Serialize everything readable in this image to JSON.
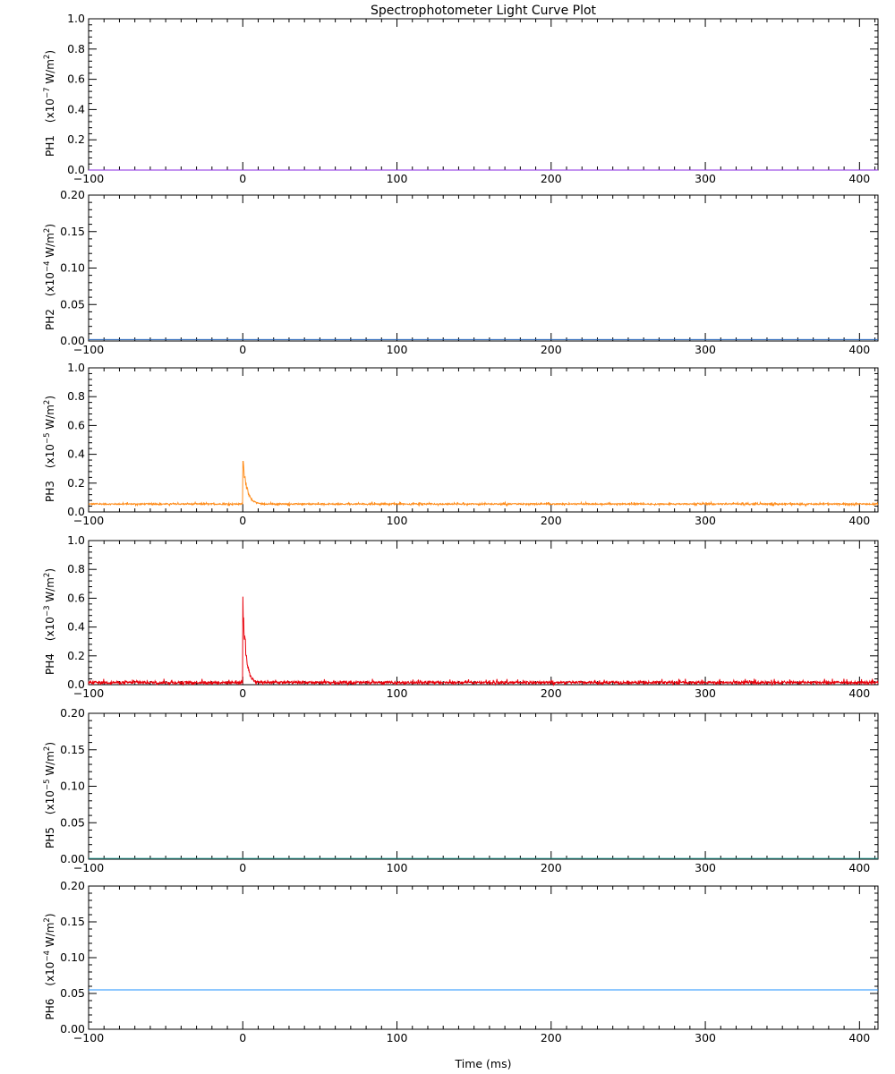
{
  "chart_data": {
    "type": "line",
    "title": "Spectrophotometer Light Curve Plot",
    "xlabel": "Time (ms)",
    "xlim": [
      -100,
      412
    ],
    "xticks": [
      -100,
      0,
      100,
      200,
      300,
      400
    ],
    "xtick_labels": [
      "−100",
      "0",
      "100",
      "200",
      "300",
      "400"
    ],
    "panels": [
      {
        "id": "ph1",
        "ylabel_name": "PH1",
        "ylabel_units": "(x10",
        "ylabel_exp": "−7",
        "ylabel_tail": " W/m",
        "ylabel_sq": "2",
        "ylabel_close": ")",
        "ylim": [
          0,
          1.0
        ],
        "yticks": [
          0.0,
          0.2,
          0.4,
          0.6,
          0.8,
          1.0
        ],
        "ytick_labels": [
          "0.0",
          "0.2",
          "0.4",
          "0.6",
          "0.8",
          "1.0"
        ],
        "color": "#8a2be2",
        "signal": {
          "baseline": 0.0,
          "noise": 0.0,
          "peak": 0.0
        }
      },
      {
        "id": "ph2",
        "ylabel_name": "PH2",
        "ylabel_units": "(x10",
        "ylabel_exp": "−4",
        "ylabel_tail": " W/m",
        "ylabel_sq": "2",
        "ylabel_close": ")",
        "ylim": [
          0,
          0.2
        ],
        "yticks": [
          0.0,
          0.05,
          0.1,
          0.15,
          0.2
        ],
        "ytick_labels": [
          "0.00",
          "0.05",
          "0.10",
          "0.15",
          "0.20"
        ],
        "color": "#1f5fb4",
        "signal": {
          "baseline": 0.002,
          "noise": 0.0,
          "peak": 0.0
        }
      },
      {
        "id": "ph3",
        "ylabel_name": "PH3",
        "ylabel_units": "(x10",
        "ylabel_exp": "−5",
        "ylabel_tail": " W/m",
        "ylabel_sq": "2",
        "ylabel_close": ")",
        "ylim": [
          0,
          1.0
        ],
        "yticks": [
          0.0,
          0.2,
          0.4,
          0.6,
          0.8,
          1.0
        ],
        "ytick_labels": [
          "0.0",
          "0.2",
          "0.4",
          "0.6",
          "0.8",
          "1.0"
        ],
        "color": "#ff8c1a",
        "signal": {
          "baseline": 0.055,
          "noise": 0.006,
          "peak": 0.42,
          "decay_ms": 2.5
        }
      },
      {
        "id": "ph4",
        "ylabel_name": "PH4",
        "ylabel_units": "(x10",
        "ylabel_exp": "−3",
        "ylabel_tail": " W/m",
        "ylabel_sq": "2",
        "ylabel_close": ")",
        "ylim": [
          0,
          1.0
        ],
        "yticks": [
          0.0,
          0.2,
          0.4,
          0.6,
          0.8,
          1.0
        ],
        "ytick_labels": [
          "0.0",
          "0.2",
          "0.4",
          "0.6",
          "0.8",
          "1.0"
        ],
        "color": "#e8000b",
        "signal": {
          "baseline": 0.015,
          "noise": 0.012,
          "peak": 0.66,
          "decay_ms": 2.0
        }
      },
      {
        "id": "ph5",
        "ylabel_name": "PH5",
        "ylabel_units": "(x10",
        "ylabel_exp": "−5",
        "ylabel_tail": " W/m",
        "ylabel_sq": "2",
        "ylabel_close": ")",
        "ylim": [
          0,
          0.2
        ],
        "yticks": [
          0.0,
          0.05,
          0.1,
          0.15,
          0.2
        ],
        "ytick_labels": [
          "0.00",
          "0.05",
          "0.10",
          "0.15",
          "0.20"
        ],
        "color": "#2aa198",
        "signal": {
          "baseline": 0.001,
          "noise": 0.0,
          "peak": 0.0
        }
      },
      {
        "id": "ph6",
        "ylabel_name": "PH6",
        "ylabel_units": "(x10",
        "ylabel_exp": "−4",
        "ylabel_tail": " W/m",
        "ylabel_sq": "2",
        "ylabel_close": ")",
        "ylim": [
          0,
          0.2
        ],
        "yticks": [
          0.0,
          0.05,
          0.1,
          0.15,
          0.2
        ],
        "ytick_labels": [
          "0.00",
          "0.05",
          "0.10",
          "0.15",
          "0.20"
        ],
        "color": "#1e90ff",
        "signal": {
          "baseline": 0.055,
          "noise": 0.0,
          "peak": 0.0
        }
      }
    ]
  }
}
